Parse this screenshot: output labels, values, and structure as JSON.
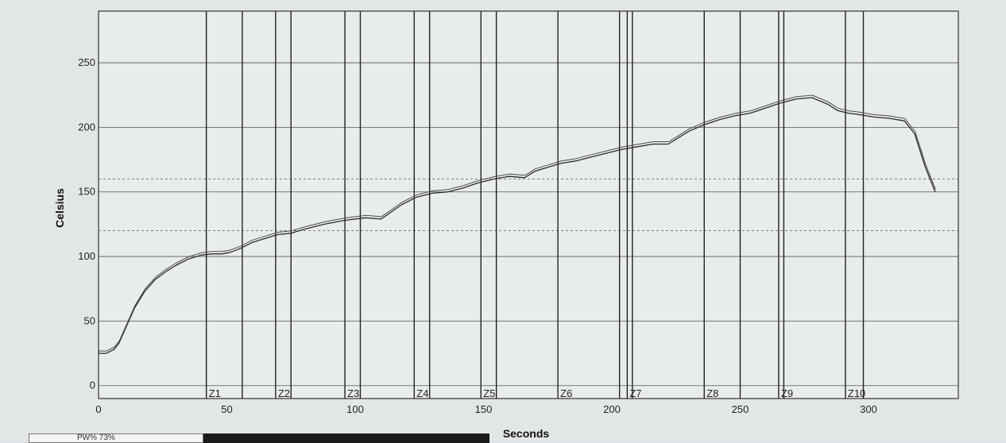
{
  "chart_data": {
    "type": "line",
    "xlabel": "Seconds",
    "ylabel": "Celsius",
    "xlim": [
      0,
      335
    ],
    "ylim": [
      -10,
      290
    ],
    "x_ticks": [
      0,
      50,
      100,
      150,
      200,
      250,
      300
    ],
    "y_ticks": [
      0,
      50,
      100,
      150,
      200,
      250
    ],
    "reference_lines": [
      120,
      160
    ],
    "zones": [
      {
        "label": "Z1",
        "start": 42,
        "end": 56
      },
      {
        "label": "Z2",
        "start": 69,
        "end": 75
      },
      {
        "label": "Z3",
        "start": 96,
        "end": 102
      },
      {
        "label": "Z4",
        "start": 123,
        "end": 129
      },
      {
        "label": "Z5",
        "start": 149,
        "end": 155
      },
      {
        "label": "Z6",
        "start": 179,
        "end": 203
      },
      {
        "label": "Z7",
        "start": 206,
        "end": 208
      },
      {
        "label": "Z8",
        "start": 236,
        "end": 250
      },
      {
        "label": "Z9",
        "start": 265,
        "end": 267
      },
      {
        "label": "Z10",
        "start": 291,
        "end": 298
      }
    ],
    "series": [
      {
        "x": [
          0,
          3,
          6,
          8,
          10,
          14,
          18,
          22,
          26,
          30,
          35,
          40,
          44,
          48,
          51,
          55,
          60,
          65,
          70,
          75,
          80,
          88,
          96,
          104,
          110,
          113,
          118,
          124,
          130,
          136,
          142,
          148,
          154,
          160,
          166,
          170,
          175,
          180,
          186,
          192,
          198,
          204,
          210,
          216,
          222,
          226,
          230,
          236,
          242,
          248,
          254,
          260,
          266,
          272,
          278,
          284,
          288,
          292,
          296,
          302,
          308,
          314,
          318,
          322,
          326
        ],
        "values": [
          25,
          25,
          28,
          33,
          42,
          60,
          73,
          82,
          88,
          93,
          98,
          101,
          102,
          102,
          103,
          106,
          111,
          114,
          117,
          118,
          121,
          125,
          128,
          130,
          129,
          133,
          140,
          146,
          149,
          150,
          153,
          157,
          160,
          162,
          161,
          166,
          169,
          172,
          174,
          177,
          180,
          183,
          185,
          187,
          187,
          192,
          197,
          202,
          206,
          209,
          211,
          215,
          219,
          222,
          223,
          218,
          213,
          211,
          210,
          208,
          207,
          205,
          195,
          170,
          150
        ]
      }
    ]
  },
  "footer": {
    "left_label": "PW% 73%"
  }
}
